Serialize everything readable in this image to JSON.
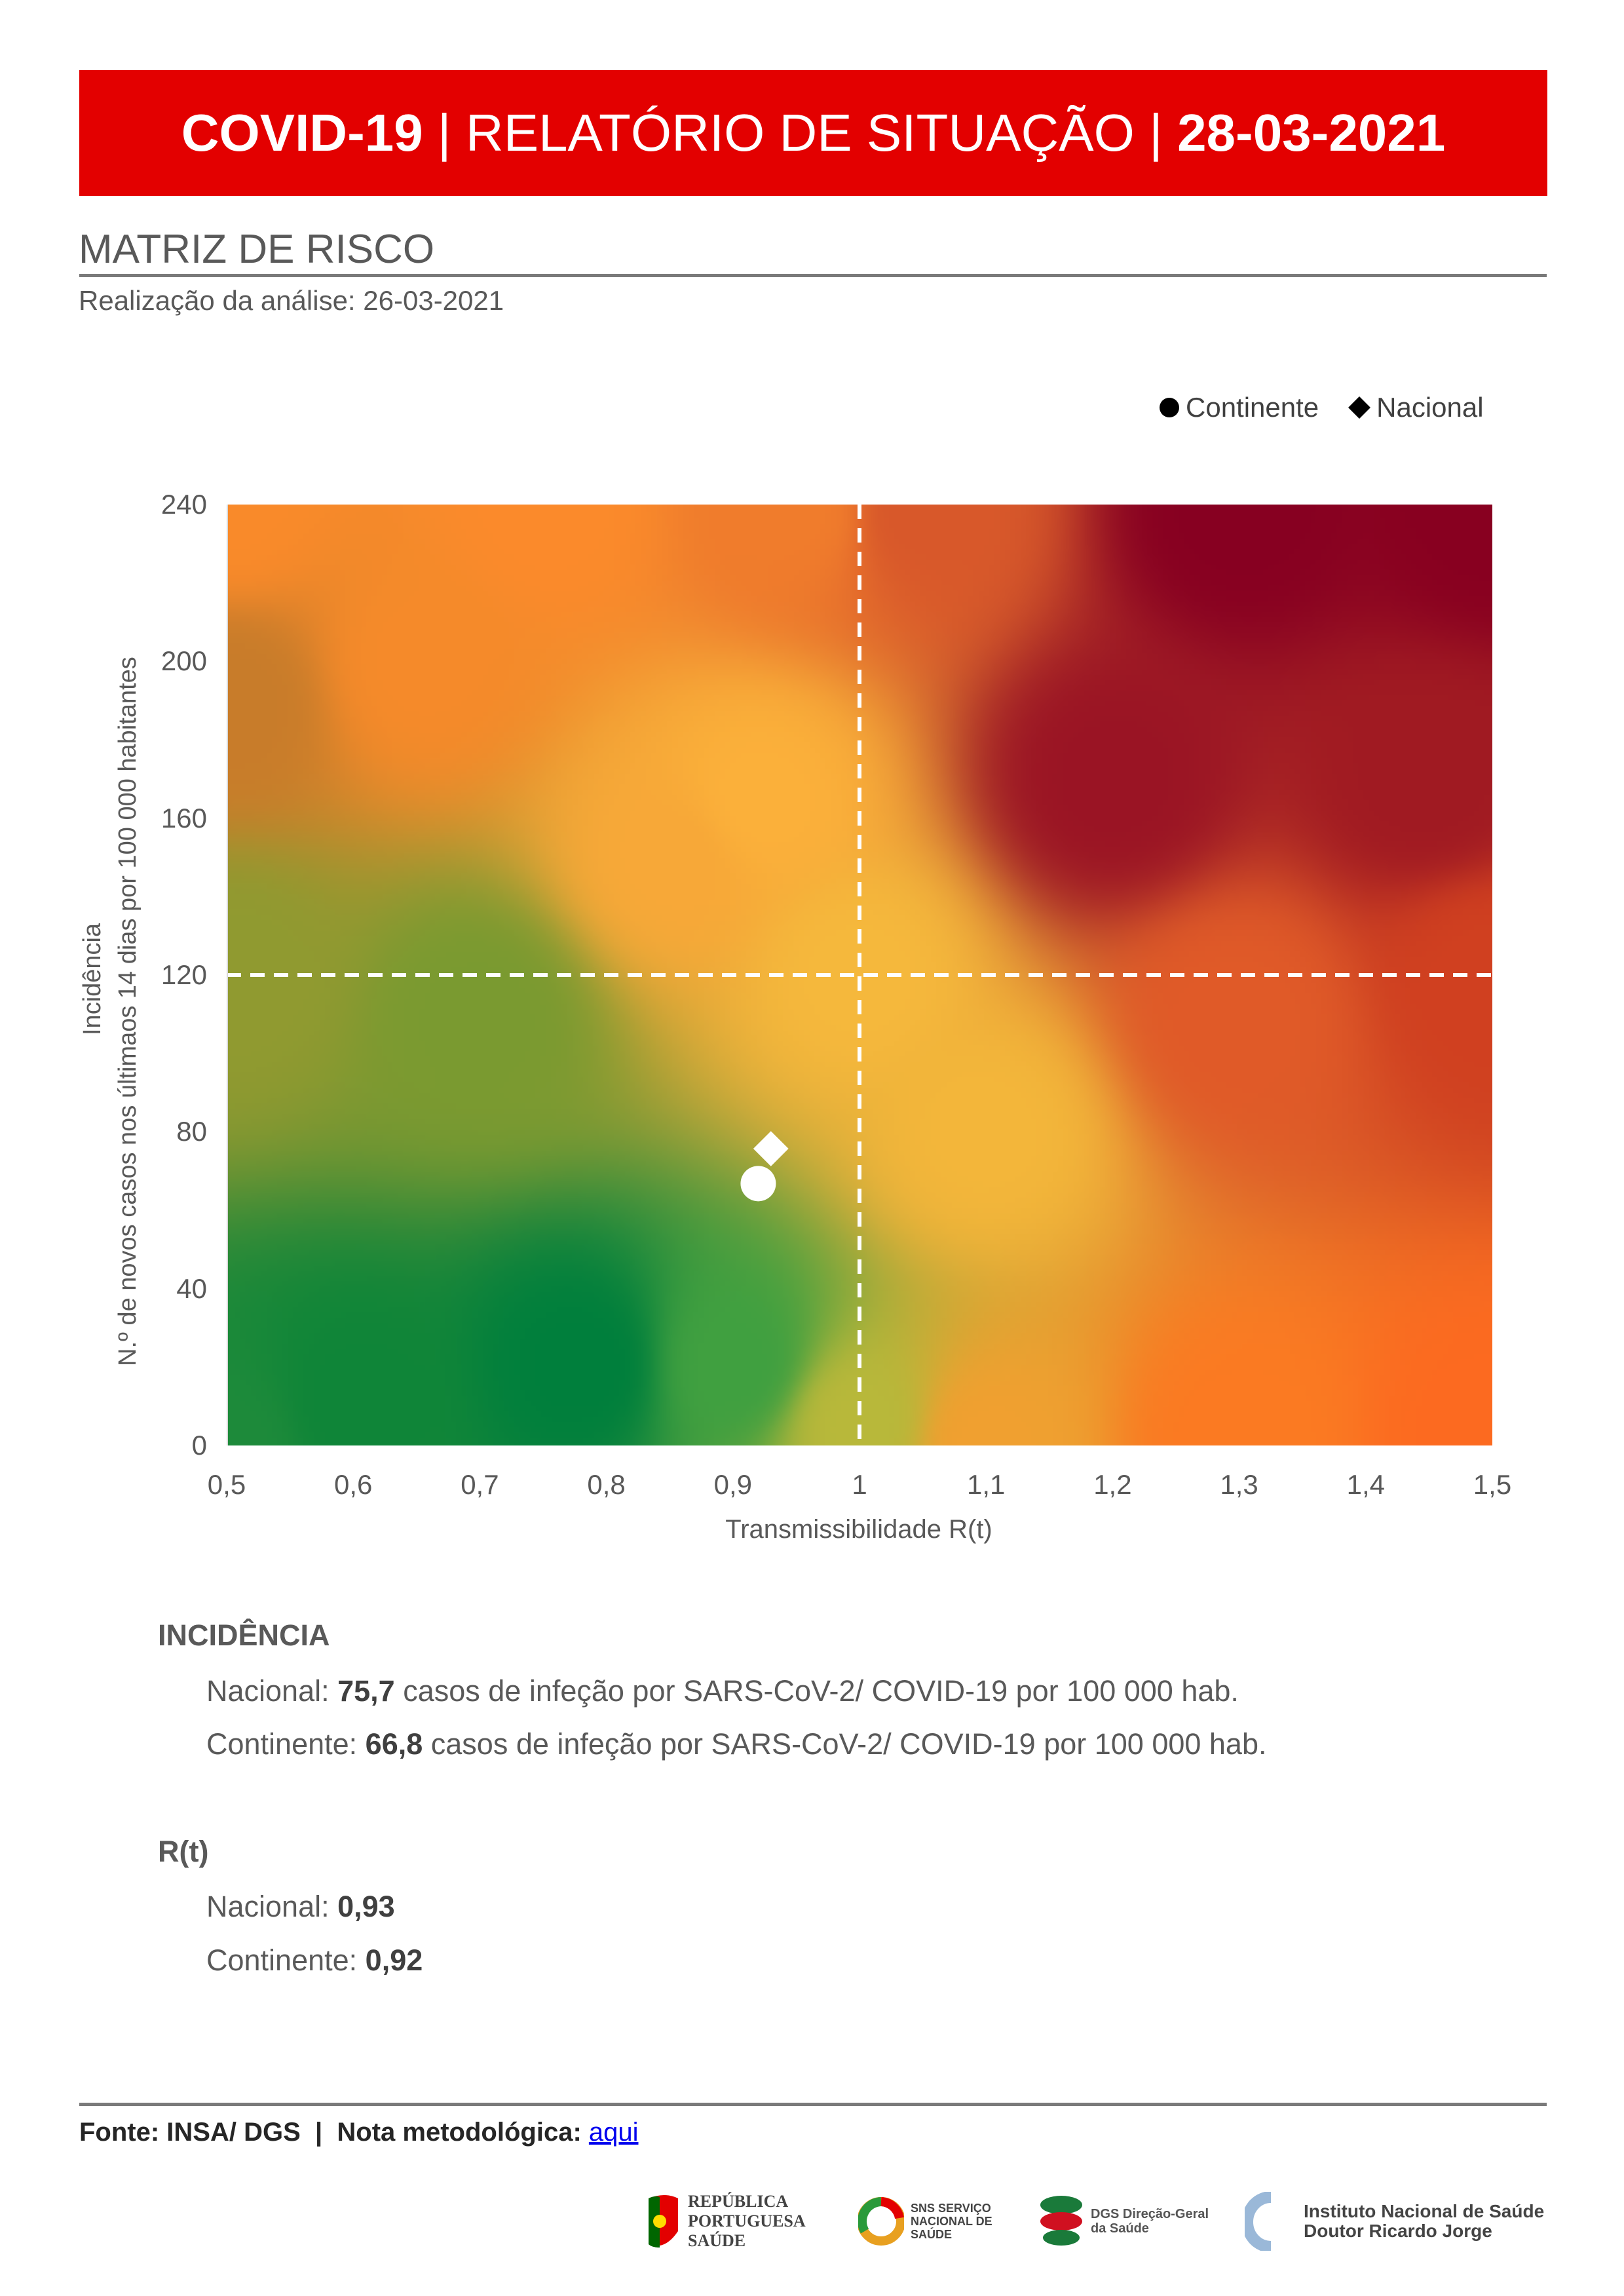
{
  "header": {
    "part1": "COVID-19",
    "sep": " | ",
    "part2": "RELATÓRIO DE SITUAÇÃO",
    "part3": "28-03-2021"
  },
  "section": {
    "title": "MATRIZ DE RISCO",
    "subtitle": "Realização da análise: 26-03-2021"
  },
  "chart_data": {
    "type": "scatter",
    "background": "risk heatmap",
    "colors": {
      "low_risk": "#007f3d",
      "medium": "#f5b83c",
      "high_left": "#f98a2a",
      "high_right": "#870021",
      "low_right": "#fc6a20",
      "accent_header": "#e30000"
    },
    "xlabel": "Transmissibilidade R(t)",
    "ylabel_line1": "Incidência",
    "ylabel_line2": "N.º de novos casos nos últimaos 14 dias por 100 000 habitantes",
    "xlim": [
      0.5,
      1.5
    ],
    "ylim": [
      0,
      240
    ],
    "xticks": [
      "0,5",
      "0,6",
      "0,7",
      "0,8",
      "0,9",
      "1",
      "1,1",
      "1,2",
      "1,3",
      "1,4",
      "1,5"
    ],
    "yticks": [
      "0",
      "40",
      "80",
      "120",
      "160",
      "200",
      "240"
    ],
    "thresholds": {
      "x": 1,
      "y": 120
    },
    "legend_position": "top-right",
    "series": [
      {
        "name": "Continente",
        "marker": "circle",
        "x": 0.92,
        "y": 66.8
      },
      {
        "name": "Nacional",
        "marker": "diamond",
        "x": 0.93,
        "y": 75.7
      }
    ]
  },
  "incidencia": {
    "heading": "INCIDÊNCIA",
    "nacional": {
      "label": "Nacional: ",
      "value": "75,7",
      "rest": " casos de infeção por SARS-CoV-2/ COVID-19 por 100 000 hab."
    },
    "continente": {
      "label": "Continente: ",
      "value": "66,8",
      "rest": " casos de infeção por SARS-CoV-2/ COVID-19 por 100 000 hab."
    }
  },
  "rt": {
    "heading": "R(t)",
    "nacional": {
      "label": "Nacional: ",
      "value": "0,93"
    },
    "continente": {
      "label": "Continente: ",
      "value": "0,92"
    }
  },
  "footer": {
    "source": "Fonte: INSA/ DGS  |  Nota metodológica: ",
    "link": "aqui",
    "logos": [
      "REPÚBLICA PORTUGUESA SAÚDE",
      "SNS SERVIÇO NACIONAL DE SAÚDE",
      "DGS Direção-Geral da Saúde",
      "Instituto Nacional de Saúde Doutor Ricardo Jorge"
    ]
  }
}
